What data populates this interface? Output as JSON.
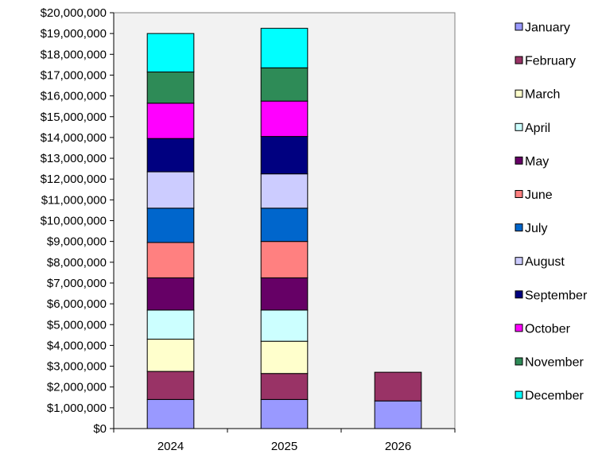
{
  "chart_data": {
    "type": "bar",
    "stacked": true,
    "title": "",
    "xlabel": "",
    "ylabel": "",
    "categories": [
      "2024",
      "2025",
      "2026"
    ],
    "ylim": [
      0,
      20000000
    ],
    "ytick_step": 1000000,
    "grid": false,
    "legend_position": "right",
    "plot_background": "#f2f2f2",
    "series": [
      {
        "name": "January",
        "color": "#9999ff",
        "values": [
          1400000,
          1400000,
          1330000
        ]
      },
      {
        "name": "February",
        "color": "#993366",
        "values": [
          1350000,
          1250000,
          1380000
        ]
      },
      {
        "name": "March",
        "color": "#ffffcc",
        "values": [
          1550000,
          1550000,
          null
        ]
      },
      {
        "name": "April",
        "color": "#ccffff",
        "values": [
          1400000,
          1500000,
          null
        ]
      },
      {
        "name": "May",
        "color": "#660066",
        "values": [
          1550000,
          1550000,
          null
        ]
      },
      {
        "name": "June",
        "color": "#ff8080",
        "values": [
          1700000,
          1750000,
          null
        ]
      },
      {
        "name": "July",
        "color": "#0066cc",
        "values": [
          1650000,
          1600000,
          null
        ]
      },
      {
        "name": "August",
        "color": "#ccccff",
        "values": [
          1750000,
          1650000,
          null
        ]
      },
      {
        "name": "September",
        "color": "#000080",
        "values": [
          1600000,
          1800000,
          null
        ]
      },
      {
        "name": "October",
        "color": "#ff00ff",
        "values": [
          1700000,
          1700000,
          null
        ]
      },
      {
        "name": "November",
        "color": "#2e8b57",
        "values": [
          1500000,
          1600000,
          null
        ]
      },
      {
        "name": "December",
        "color": "#00ffff",
        "values": [
          1850000,
          1900000,
          null
        ]
      }
    ]
  }
}
